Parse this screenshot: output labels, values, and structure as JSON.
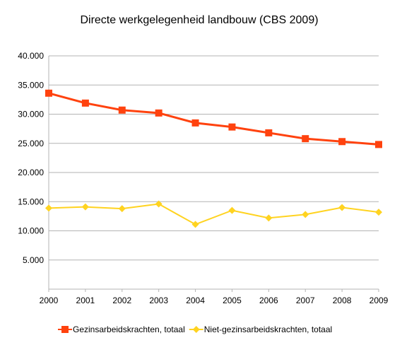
{
  "chart_data": {
    "type": "line",
    "title": "Directe werkgelegenheid landbouw (CBS 2009)",
    "xlabel": "",
    "ylabel": "",
    "x": [
      "2000",
      "2001",
      "2002",
      "2003",
      "2004",
      "2005",
      "2006",
      "2007",
      "2008",
      "2009"
    ],
    "ylim": [
      0,
      40000
    ],
    "yticks": [
      0,
      5000,
      10000,
      15000,
      20000,
      25000,
      30000,
      35000,
      40000
    ],
    "ytick_labels": [
      "",
      "5.000",
      "10.000",
      "15.000",
      "20.000",
      "25.000",
      "30.000",
      "35.000",
      "40.000"
    ],
    "grid": true,
    "legend_position": "bottom",
    "series": [
      {
        "name": "Gezinsarbeidskrachten, totaal",
        "color": "#ff420e",
        "marker": "square",
        "values": [
          33600,
          31900,
          30700,
          30200,
          28500,
          27800,
          26800,
          25800,
          25300,
          24800
        ]
      },
      {
        "name": "Niet-gezinsarbeidskrachten, totaal",
        "color": "#ffd320",
        "marker": "diamond",
        "values": [
          13900,
          14100,
          13800,
          14600,
          11100,
          13500,
          12200,
          12800,
          14000,
          13200
        ]
      }
    ]
  }
}
